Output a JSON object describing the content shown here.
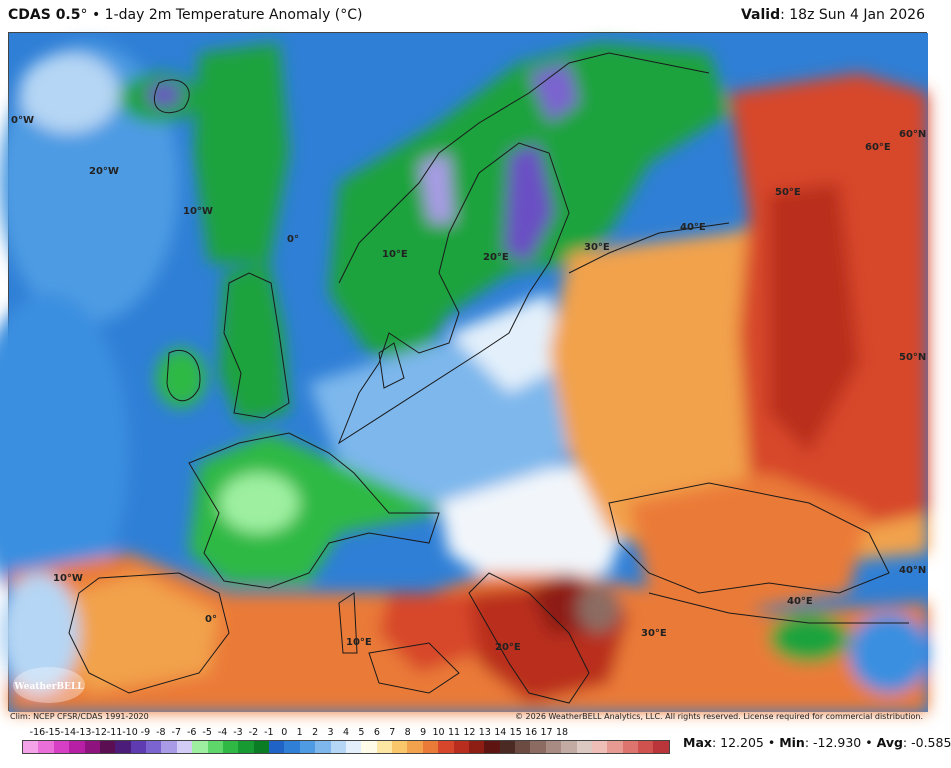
{
  "header": {
    "model": "CDAS 0.5",
    "title_rest": "° • 1-day 2m Temperature Anomaly (°C)",
    "valid_label": "Valid",
    "valid_value": ": 18z Sun 4 Jan 2026"
  },
  "map": {
    "region": "Europe",
    "palette": {
      "sea": "#2f7fd6",
      "cold_strong": "#6a4fc4",
      "cold": "#1fa33c",
      "cool": "#3a8fe0",
      "neutral": "#f2f6fb",
      "warm": "#f2a24c",
      "hot": "#d7462a",
      "very_hot": "#8e1d14"
    },
    "grid_labels": [
      "0°W",
      "20°W",
      "10°W",
      "0°",
      "10°E",
      "20°E",
      "30°E",
      "40°E",
      "50°E",
      "60°E",
      "60°N",
      "50°N",
      "40°N",
      "10°W",
      "0°",
      "10°E",
      "20°E",
      "30°E",
      "40°E"
    ],
    "logo_text": "WeatherBELL"
  },
  "footer": {
    "clim": "Clim: NCEP CFSR/CDAS 1991-2020",
    "copyright": "© 2026 WeatherBELL Analytics, LLC. All rights reserved. License required for commercial distribution."
  },
  "colorbar": {
    "ticks": [
      "-16",
      "-15",
      "-14",
      "-13",
      "-12",
      "-11",
      "-10",
      "-9",
      "-8",
      "-7",
      "-6",
      "-5",
      "-4",
      "-3",
      "-2",
      "-1",
      "0",
      "1",
      "2",
      "3",
      "4",
      "5",
      "6",
      "7",
      "8",
      "9",
      "10",
      "11",
      "12",
      "13",
      "14",
      "15",
      "16",
      "17",
      "18"
    ],
    "colors": [
      "#f5a3e8",
      "#ea6fd9",
      "#d73fc4",
      "#b71fa5",
      "#8e137f",
      "#5b0e52",
      "#4b1c7a",
      "#5e3bb0",
      "#7c64d0",
      "#a99be6",
      "#d3ccf4",
      "#9ef0a0",
      "#5fd66a",
      "#2fb944",
      "#169a31",
      "#0a7d24",
      "#1f63c6",
      "#2f7fd6",
      "#4e9be3",
      "#7db7ec",
      "#b5d6f4",
      "#e3f0fb",
      "#fffbe9",
      "#fde6a3",
      "#f9c76a",
      "#f2a24c",
      "#ea7a37",
      "#d7462a",
      "#b92d1f",
      "#8e1d14",
      "#5e1410",
      "#4a2a23",
      "#6b4b42",
      "#8c6c62",
      "#a88b82",
      "#c2aba3",
      "#dbc9c2",
      "#efbfb7",
      "#e79a92",
      "#dd746d",
      "#cf524e",
      "#b9353a"
    ],
    "max_label": "Max",
    "max_value": ": 12.205 •",
    "min_label": "Min",
    "min_value": ": -12.930 •",
    "avg_label": "Avg",
    "avg_value": ": -0.585"
  }
}
